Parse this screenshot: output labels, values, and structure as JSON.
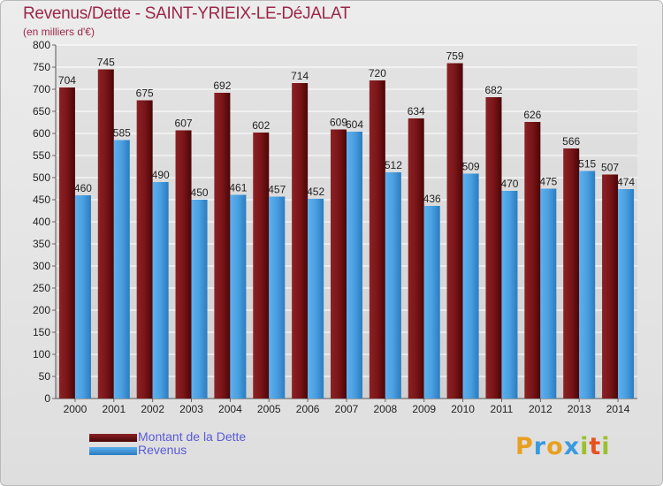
{
  "chart_data": {
    "type": "bar",
    "title": "Revenus/Dette - SAINT-YRIEIX-LE-DéJALAT",
    "subtitle": "(en milliers d'€)",
    "xlabel": "",
    "ylabel": "",
    "ylim": [
      0,
      800
    ],
    "yticks": [
      0,
      50,
      100,
      150,
      200,
      250,
      300,
      350,
      400,
      450,
      500,
      550,
      600,
      650,
      700,
      750,
      800
    ],
    "grid": true,
    "legend_position": "bottom-left",
    "categories": [
      "2000",
      "2001",
      "2002",
      "2003",
      "2004",
      "2005",
      "2006",
      "2007",
      "2008",
      "2009",
      "2010",
      "2011",
      "2012",
      "2013",
      "2014"
    ],
    "series": [
      {
        "name": "Montant de la Dette",
        "color": "#7a1518",
        "values": [
          704,
          745,
          675,
          607,
          692,
          602,
          714,
          609,
          720,
          634,
          759,
          682,
          626,
          566,
          507
        ]
      },
      {
        "name": "Revenus",
        "color": "#4a9fe0",
        "values": [
          460,
          585,
          490,
          450,
          461,
          457,
          452,
          604,
          512,
          436,
          509,
          470,
          475,
          515,
          474
        ]
      }
    ]
  },
  "logo": {
    "letters": [
      "P",
      "r",
      "o",
      "x",
      "i",
      "t",
      "i"
    ],
    "colors": [
      "#e8a020",
      "#3a9adf",
      "#e8a020",
      "#3a9adf",
      "#9ac030",
      "#e85020",
      "#9ac030"
    ]
  }
}
